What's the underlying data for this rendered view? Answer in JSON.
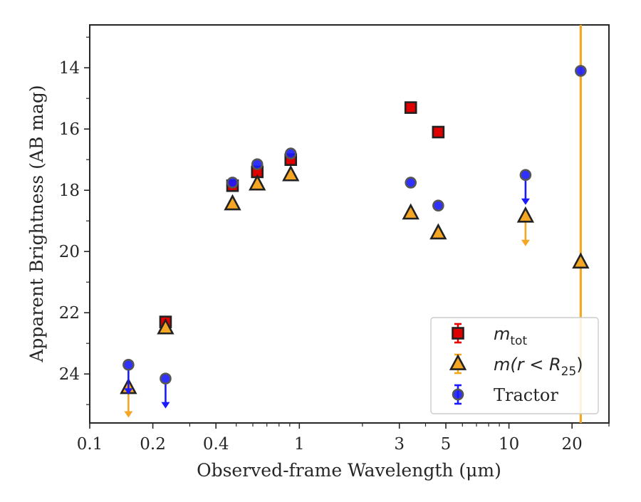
{
  "chart_data": {
    "type": "scatter",
    "xlabel": "Observed-frame Wavelength (μm)",
    "ylabel": "Apparent Brightness (AB mag)",
    "xscale": "log",
    "xlim": [
      0.1,
      30
    ],
    "ylim": [
      25.6,
      12.6
    ],
    "y_inverted": true,
    "x_ticks": [
      {
        "value": 0.1,
        "label": "0.1"
      },
      {
        "value": 0.2,
        "label": "0.2"
      },
      {
        "value": 0.4,
        "label": "0.4"
      },
      {
        "value": 1,
        "label": "1"
      },
      {
        "value": 3,
        "label": "3"
      },
      {
        "value": 5,
        "label": "5"
      },
      {
        "value": 10,
        "label": "10"
      },
      {
        "value": 20,
        "label": "20"
      }
    ],
    "y_ticks": [
      {
        "value": 14,
        "label": "14"
      },
      {
        "value": 16,
        "label": "16"
      },
      {
        "value": 18,
        "label": "18"
      },
      {
        "value": 20,
        "label": "20"
      },
      {
        "value": 22,
        "label": "22"
      },
      {
        "value": 24,
        "label": "24"
      }
    ],
    "grid": false,
    "legend_position": "lower-right",
    "series": [
      {
        "name": "m_tot",
        "legend_label_main": "m",
        "legend_label_sub": "tot",
        "marker": "square",
        "color": "#e00000",
        "points": [
          {
            "x": 0.23,
            "y": 22.3
          },
          {
            "x": 0.48,
            "y": 17.85
          },
          {
            "x": 0.63,
            "y": 17.4
          },
          {
            "x": 0.91,
            "y": 17.0
          },
          {
            "x": 3.4,
            "y": 15.3
          },
          {
            "x": 4.6,
            "y": 16.1
          }
        ]
      },
      {
        "name": "m(r < R25)",
        "legend_label_main": "m(r < R",
        "legend_label_sub": "25",
        "legend_label_end": ")",
        "marker": "triangle",
        "color": "#f5a623",
        "points": [
          {
            "x": 0.153,
            "y": 24.45,
            "upper_limit": true
          },
          {
            "x": 0.23,
            "y": 22.5
          },
          {
            "x": 0.48,
            "y": 18.45
          },
          {
            "x": 0.63,
            "y": 17.8
          },
          {
            "x": 0.91,
            "y": 17.5
          },
          {
            "x": 3.4,
            "y": 18.75
          },
          {
            "x": 4.6,
            "y": 19.4
          },
          {
            "x": 12.0,
            "y": 18.85,
            "upper_limit": true
          },
          {
            "x": 22.0,
            "y": 20.35,
            "yerr_full": true
          }
        ]
      },
      {
        "name": "Tractor",
        "marker": "circle",
        "color": "#1a1aff",
        "points": [
          {
            "x": 0.153,
            "y": 23.7,
            "upper_limit": true
          },
          {
            "x": 0.23,
            "y": 24.15,
            "upper_limit": true
          },
          {
            "x": 0.48,
            "y": 17.75
          },
          {
            "x": 0.63,
            "y": 17.15
          },
          {
            "x": 0.91,
            "y": 16.8
          },
          {
            "x": 3.4,
            "y": 17.75
          },
          {
            "x": 4.6,
            "y": 18.5
          },
          {
            "x": 12.0,
            "y": 17.5,
            "upper_limit": true
          },
          {
            "x": 22.0,
            "y": 14.1
          }
        ]
      }
    ]
  },
  "legend": {
    "tractor": "Tractor"
  },
  "colors": {
    "axis": "#262626",
    "square_fill": "#e00000",
    "triangle_fill": "#f5a623",
    "circle_fill": "#1a1aff",
    "marker_edge": "#222222"
  }
}
